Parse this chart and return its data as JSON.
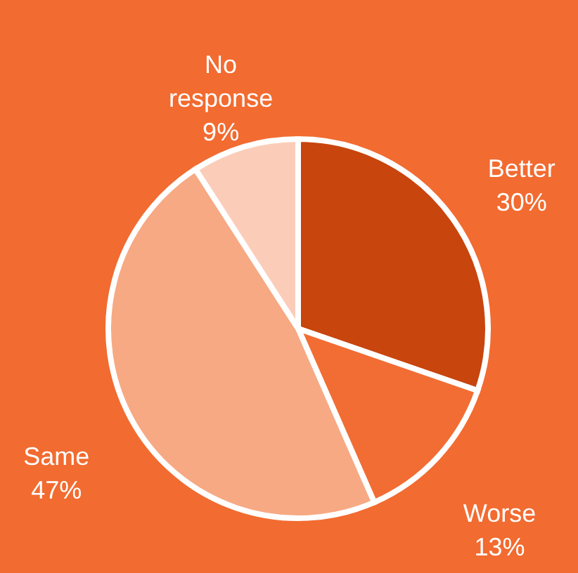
{
  "chart_data": {
    "type": "pie",
    "categories": [
      "Better",
      "Worse",
      "Same",
      "No response"
    ],
    "values": [
      30,
      13,
      47,
      9
    ],
    "value_labels": [
      "30%",
      "13%",
      "47%",
      "9%"
    ],
    "colors": [
      "#c8450e",
      "#f26d33",
      "#f7a983",
      "#fbcdb9"
    ]
  }
}
